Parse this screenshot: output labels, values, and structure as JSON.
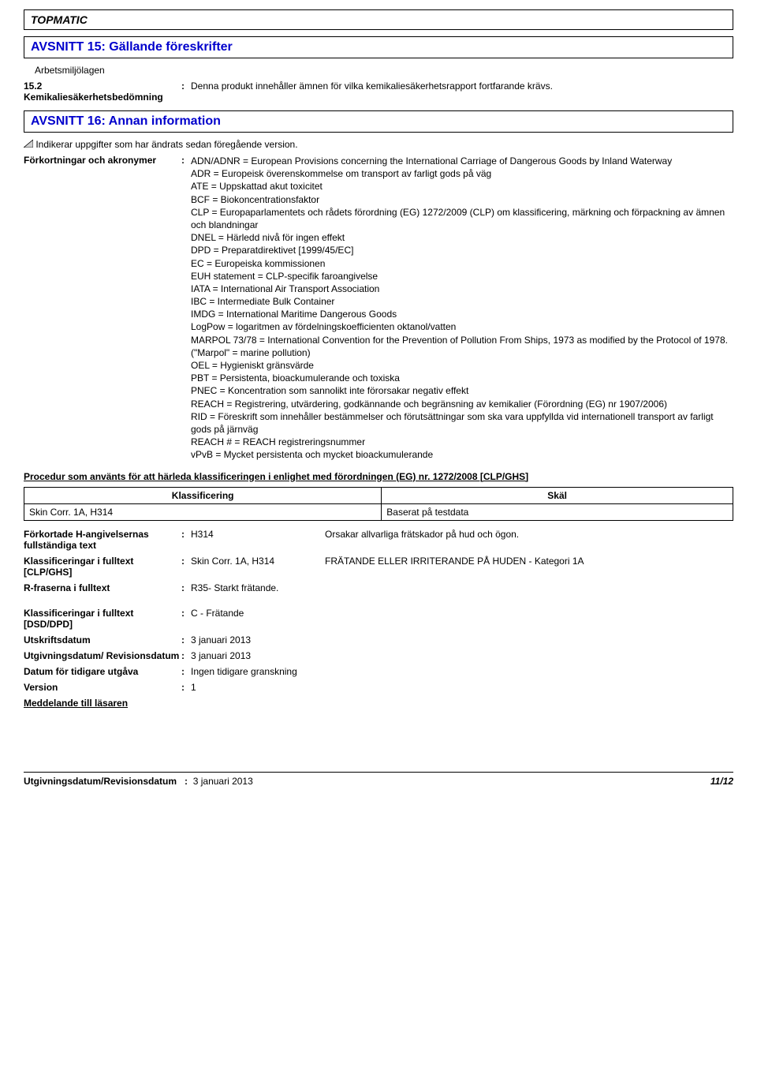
{
  "product_name": "TOPMATIC",
  "section15": {
    "heading": "AVSNITT 15: Gällande föreskrifter",
    "sub": "Arbetsmiljölagen",
    "row_label_num": "15.2",
    "row_label_text": "Kemikaliesäkerhetsbedömning",
    "row_value": "Denna produkt innehåller ämnen för vilka kemikaliesäkerhetsrapport fortfarande krävs."
  },
  "section16": {
    "heading": "AVSNITT 16: Annan information",
    "changed_note": "Indikerar uppgifter som har ändrats sedan föregående version.",
    "abbr_label": "Förkortningar och akronymer",
    "abbr_lines": [
      "ADN/ADNR = European Provisions concerning the International Carriage of Dangerous Goods by Inland Waterway",
      "ADR = Europeisk överenskommelse om transport av farligt gods på väg",
      "ATE = Uppskattad akut toxicitet",
      "BCF = Biokoncentrationsfaktor",
      "CLP = Europaparlamentets och rådets förordning (EG) 1272/2009 (CLP) om klassificering, märkning och förpackning av ämnen och blandningar",
      "DNEL = Härledd nivå för ingen effekt",
      "DPD = Preparatdirektivet [1999/45/EC]",
      "EC = Europeiska kommissionen",
      "EUH statement = CLP-specifik faroangivelse",
      "IATA = International Air Transport Association",
      "IBC = Intermediate Bulk Container",
      "IMDG = International Maritime Dangerous Goods",
      "LogPow = logaritmen av fördelningskoefficienten oktanol/vatten",
      "MARPOL 73/78 = International Convention for the Prevention of Pollution From Ships, 1973 as modified by the Protocol of 1978. (\"Marpol\" = marine pollution)",
      "OEL = Hygieniskt gränsvärde",
      "PBT = Persistenta, bioackumulerande och toxiska",
      "PNEC = Koncentration som sannolikt inte förorsakar negativ effekt",
      "REACH = Registrering, utvärdering, godkännande och begränsning av kemikalier (Förordning (EG) nr 1907/2006)",
      "RID = Föreskrift som innehåller bestämmelser och förutsättningar som ska vara uppfyllda vid internationell transport av farligt gods på järnväg",
      "REACH # = REACH registreringsnummer",
      "vPvB = Mycket persistenta och mycket bioackumulerande"
    ]
  },
  "procedure": {
    "heading": "Procedur som använts för att härleda klassificeringen i enlighet med förordningen (EG) nr. 1272/2008 [CLP/GHS]",
    "col1": "Klassificering",
    "col2": "Skäl",
    "row_c1": "Skin Corr. 1A, H314",
    "row_c2": "Baserat på testdata"
  },
  "details": {
    "h_label": "Förkortade H-angivelsernas fullständiga text",
    "h_code": "H314",
    "h_text": "Orsakar allvarliga frätskador på hud och ögon.",
    "clp_label": "Klassificeringar i fulltext [CLP/GHS]",
    "clp_code": "Skin Corr. 1A, H314",
    "clp_text": "FRÄTANDE ELLER IRRITERANDE PÅ HUDEN - Kategori 1A",
    "r_label": "R-fraserna i fulltext",
    "r_code": "R35- Starkt frätande.",
    "dsd_label": "Klassificeringar i fulltext [DSD/DPD]",
    "dsd_code": "C - Frätande",
    "print_label": "Utskriftsdatum",
    "print_val": "3 januari 2013",
    "issue_label": "Utgivningsdatum/ Revisionsdatum",
    "issue_val": "3 januari 2013",
    "prev_label": "Datum för tidigare utgåva",
    "prev_val": "Ingen tidigare granskning",
    "ver_label": "Version",
    "ver_val": "1",
    "reader_label": "Meddelande till läsaren"
  },
  "footer": {
    "left_label": "Utgivningsdatum/Revisionsdatum",
    "left_sep": ":",
    "left_date": "3 januari 2013",
    "page": "11/12"
  },
  "colors": {
    "heading_blue": "#0000cc",
    "border": "#000000",
    "text": "#000000",
    "marker_fill": "#d0d0d0"
  }
}
